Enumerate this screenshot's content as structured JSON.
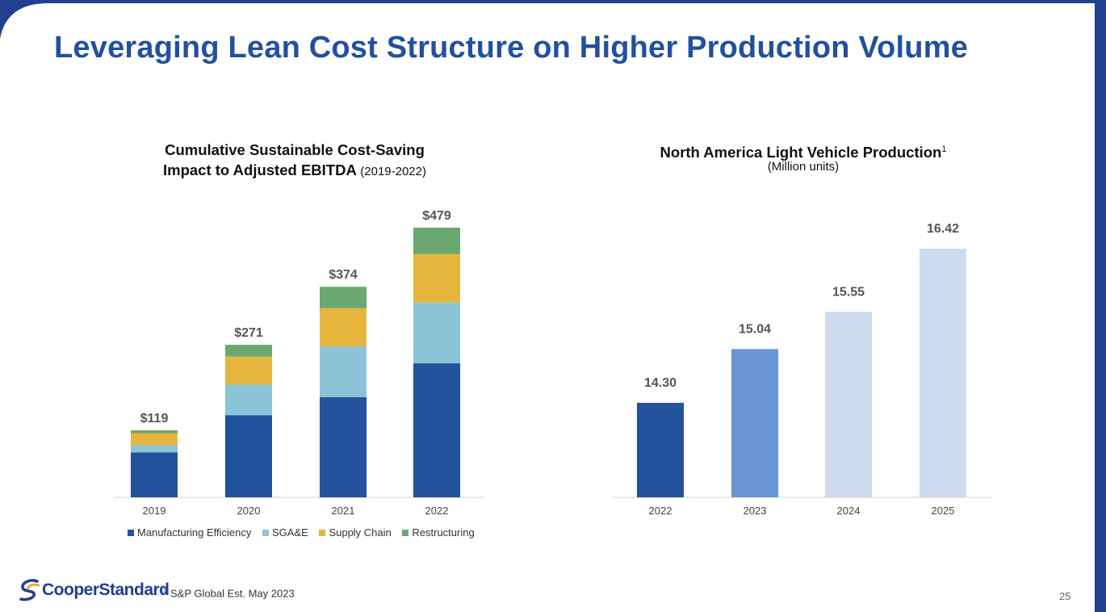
{
  "page": {
    "title": "Leveraging Lean Cost Structure on Higher Production Volume",
    "footnote_marker": "1",
    "footnote": "S&P Global Est. May 2023",
    "page_number": "25",
    "logo_text": "CooperStandard",
    "brand_color": "#22509f"
  },
  "chart_data": [
    {
      "type": "bar",
      "stacked": true,
      "title_line1": "Cumulative Sustainable Cost-Saving",
      "title_line2": "Impact to Adjusted EBITDA",
      "title_suffix": "(2019-2022)",
      "categories": [
        "2019",
        "2020",
        "2021",
        "2022"
      ],
      "totals": [
        "$119",
        "$271",
        "$374",
        "$479"
      ],
      "total_values": [
        119,
        271,
        374,
        479
      ],
      "series": [
        {
          "name": "Manufacturing Efficiency",
          "color": "#22529c",
          "values": [
            80,
            146,
            178,
            238
          ]
        },
        {
          "name": "SGA&E",
          "color": "#8bc4d6",
          "values": [
            13,
            54,
            90,
            108
          ]
        },
        {
          "name": "Supply Chain",
          "color": "#e6b53e",
          "values": [
            21,
            50,
            68,
            86
          ]
        },
        {
          "name": "Restructuring",
          "color": "#6aa86f",
          "values": [
            5,
            21,
            38,
            47
          ]
        }
      ],
      "ylim": [
        0,
        479
      ],
      "grid": false,
      "legend_position": "bottom"
    },
    {
      "type": "bar",
      "title": "North America Light Vehicle Production",
      "title_superscript": "1",
      "subtitle": "(Million units)",
      "categories": [
        "2022",
        "2023",
        "2024",
        "2025"
      ],
      "values": [
        14.3,
        15.04,
        15.55,
        16.42
      ],
      "labels": [
        "14.30",
        "15.04",
        "15.55",
        "16.42"
      ],
      "colors": [
        "#22529c",
        "#6b96d6",
        "#cddbf1",
        "#cddbf1"
      ],
      "baseline": 13.0,
      "grid": false
    }
  ]
}
